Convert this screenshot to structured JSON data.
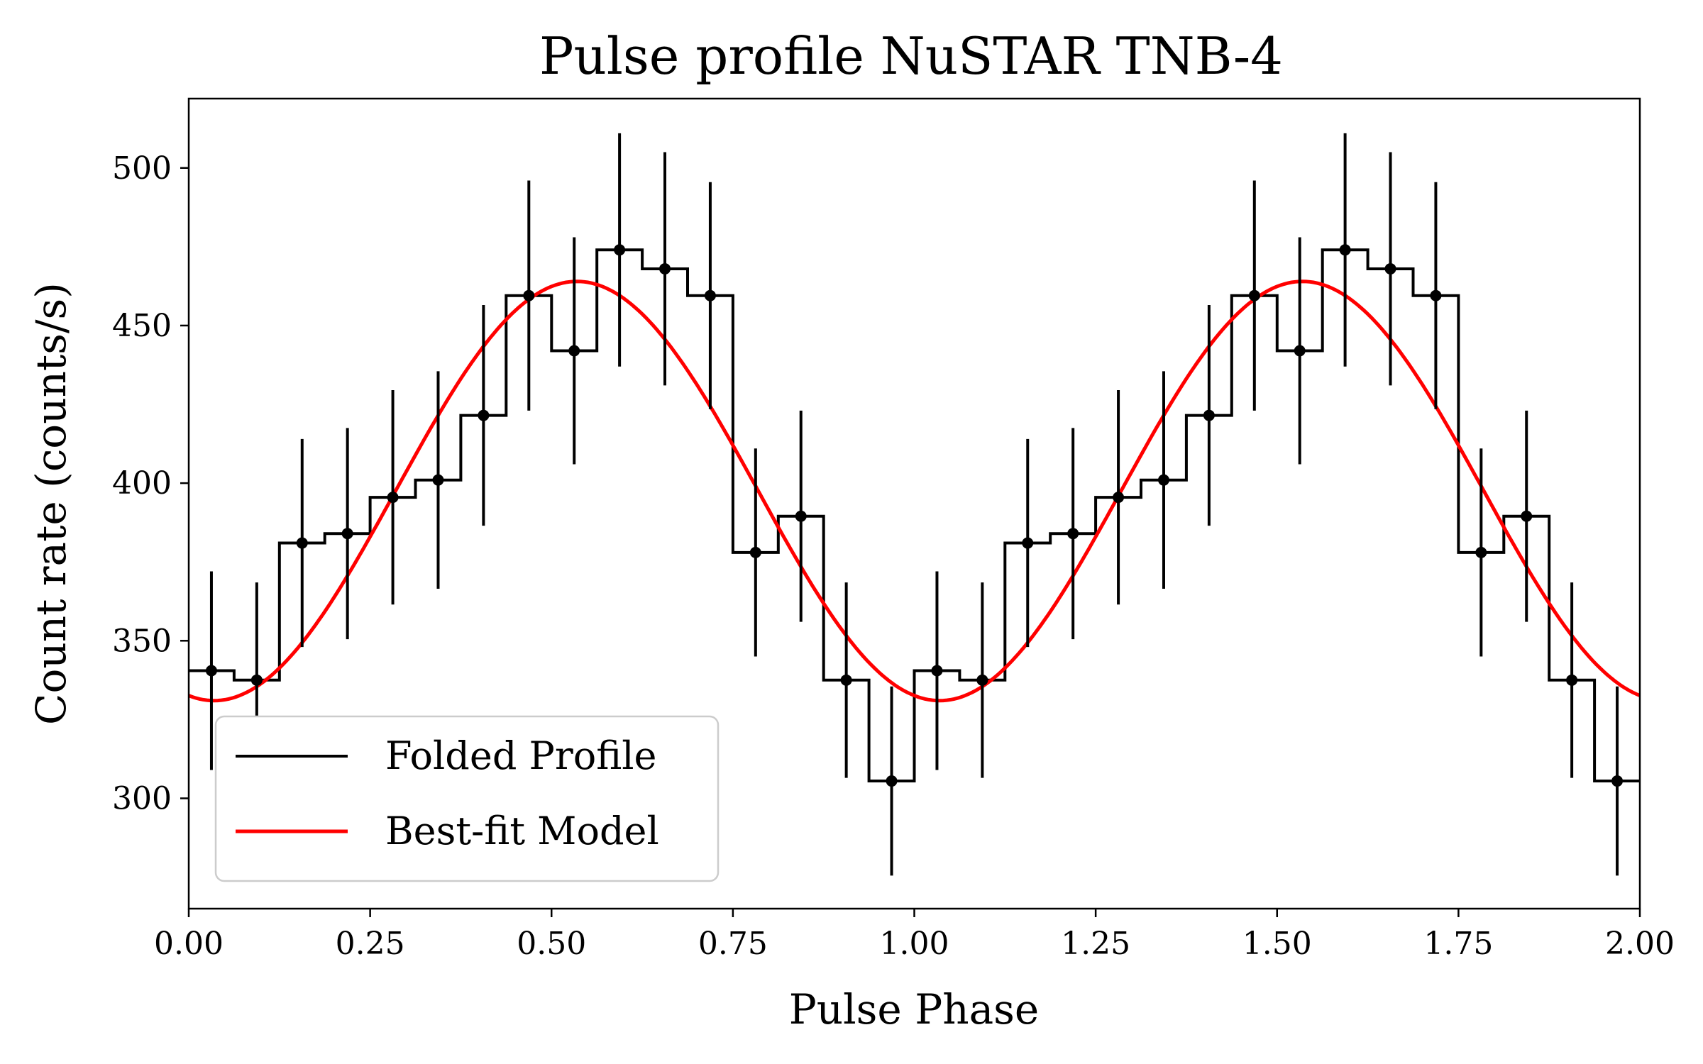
{
  "chart_data": {
    "type": "line",
    "title": "Pulse profile NuSTAR TNB-4",
    "xlabel": "Pulse Phase",
    "ylabel": "Count rate (counts/s)",
    "xlim": [
      0.0,
      2.0
    ],
    "ylim": [
      265,
      522
    ],
    "xticks": [
      0.0,
      0.25,
      0.5,
      0.75,
      1.0,
      1.25,
      1.5,
      1.75,
      2.0
    ],
    "xtick_labels": [
      "0.00",
      "0.25",
      "0.50",
      "0.75",
      "1.00",
      "1.25",
      "1.50",
      "1.75",
      "2.00"
    ],
    "yticks": [
      300,
      350,
      400,
      450,
      500
    ],
    "ytick_labels": [
      "300",
      "350",
      "400",
      "450",
      "500"
    ],
    "grid": false,
    "legend_position": "lower-left",
    "series": [
      {
        "name": "Folded Profile",
        "kind": "step-with-errorbars",
        "color": "#000000",
        "bin_width": 0.0625,
        "x": [
          0.03125,
          0.09375,
          0.15625,
          0.21875,
          0.28125,
          0.34375,
          0.40625,
          0.46875,
          0.53125,
          0.59375,
          0.65625,
          0.71875,
          0.78125,
          0.84375,
          0.90625,
          0.96875,
          1.03125,
          1.09375,
          1.15625,
          1.21875,
          1.28125,
          1.34375,
          1.40625,
          1.46875,
          1.53125,
          1.59375,
          1.65625,
          1.71875,
          1.78125,
          1.84375,
          1.90625,
          1.96875
        ],
        "y": [
          340.5,
          337.5,
          381.0,
          384.0,
          395.5,
          401.0,
          421.5,
          459.5,
          442.0,
          474.0,
          468.0,
          459.5,
          378.0,
          389.5,
          337.5,
          305.5,
          340.5,
          337.5,
          381.0,
          384.0,
          395.5,
          401.0,
          421.5,
          459.5,
          442.0,
          474.0,
          468.0,
          459.5,
          378.0,
          389.5,
          337.5,
          305.5
        ],
        "yerr": [
          31.5,
          31.0,
          33.0,
          33.5,
          34.0,
          34.5,
          35.0,
          36.5,
          36.0,
          37.0,
          37.0,
          36.0,
          33.0,
          33.5,
          31.0,
          30.0,
          31.5,
          31.0,
          33.0,
          33.5,
          34.0,
          34.5,
          35.0,
          36.5,
          36.0,
          37.0,
          37.0,
          36.0,
          33.0,
          33.5,
          31.0,
          30.0
        ]
      },
      {
        "name": "Best-fit Model",
        "kind": "sinusoid",
        "color": "#ff0000",
        "mean": 397.5,
        "amplitude": 66.5,
        "period": 1.0,
        "peak_phase": 0.535
      }
    ]
  }
}
